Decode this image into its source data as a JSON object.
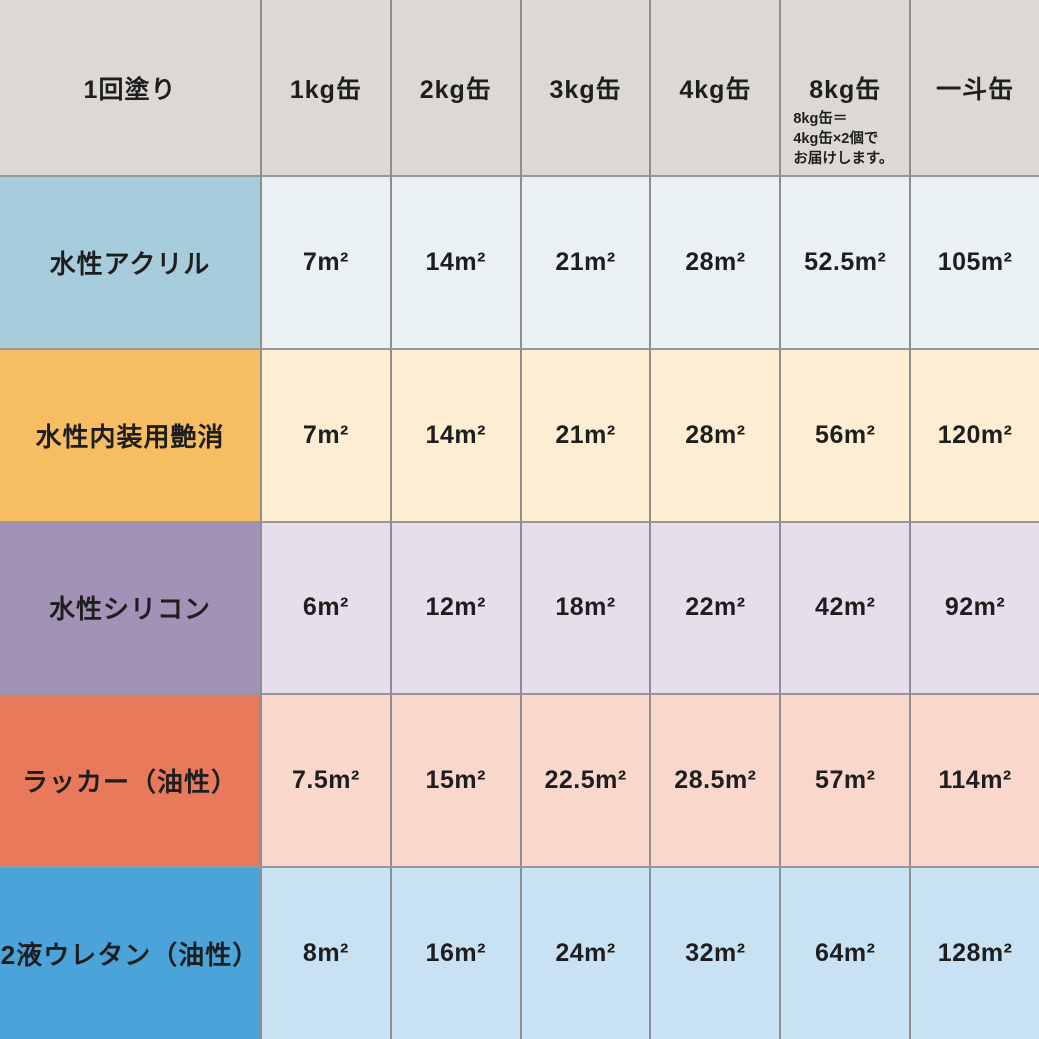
{
  "table": {
    "corner_label": "1回塗り",
    "column_headers": [
      "1kg缶",
      "2kg缶",
      "3kg缶",
      "4kg缶",
      "8kg缶",
      "一斗缶"
    ],
    "note": {
      "lines": [
        "8kg缶＝",
        "4kg缶×2個で",
        "お届けします。"
      ]
    },
    "rows": [
      {
        "label": "水性アクリル",
        "label_bg": "#a7cddd",
        "cell_bg": "#e9f1f5",
        "values": [
          "7m²",
          "14m²",
          "21m²",
          "28m²",
          "52.5m²",
          "105m²"
        ]
      },
      {
        "label": "水性内装用艶消",
        "label_bg": "#f6bd62",
        "cell_bg": "#fdedd2",
        "values": [
          "7m²",
          "14m²",
          "21m²",
          "28m²",
          "56m²",
          "120m²"
        ]
      },
      {
        "label": "水性シリコン",
        "label_bg": "#a392b8",
        "cell_bg": "#e6dfeb",
        "values": [
          "6m²",
          "12m²",
          "18m²",
          "22m²",
          "42m²",
          "92m²"
        ]
      },
      {
        "label": "ラッカー（油性）",
        "label_bg": "#e87a5b",
        "cell_bg": "#f9d7ca",
        "values": [
          "7.5m²",
          "15m²",
          "22.5m²",
          "28.5m²",
          "57m²",
          "114m²"
        ]
      },
      {
        "label": "2液ウレタン（油性）",
        "label_bg": "#4aa4da",
        "cell_bg": "#c8e2f3",
        "values": [
          "8m²",
          "16m²",
          "24m²",
          "32m²",
          "64m²",
          "128m²"
        ]
      }
    ]
  },
  "colors": {
    "header_bg": "#dcd9d4",
    "grid_line": "#8e8e8e",
    "text": "#1e1e1e"
  },
  "chart_data": {
    "type": "table",
    "title": "1回塗り",
    "columns": [
      "1回塗り",
      "1kg缶",
      "2kg缶",
      "3kg缶",
      "4kg缶",
      "8kg缶",
      "一斗缶"
    ],
    "rows": [
      [
        "水性アクリル",
        "7m²",
        "14m²",
        "21m²",
        "28m²",
        "52.5m²",
        "105m²"
      ],
      [
        "水性内装用艶消",
        "7m²",
        "14m²",
        "21m²",
        "28m²",
        "56m²",
        "120m²"
      ],
      [
        "水性シリコン",
        "6m²",
        "12m²",
        "18m²",
        "22m²",
        "42m²",
        "92m²"
      ],
      [
        "ラッカー（油性）",
        "7.5m²",
        "15m²",
        "22.5m²",
        "28.5m²",
        "57m²",
        "114m²"
      ],
      [
        "2液ウレタン（油性）",
        "8m²",
        "16m²",
        "24m²",
        "32m²",
        "64m²",
        "128m²"
      ]
    ],
    "note": "8kg缶＝4kg缶×2個でお届けします。"
  }
}
